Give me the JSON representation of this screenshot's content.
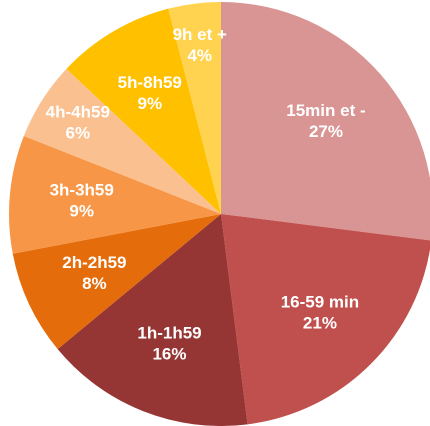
{
  "chart_data": {
    "type": "pie",
    "categories": [
      "15min et -",
      "16-59 min",
      "1h-1h59",
      "2h-2h59",
      "3h-3h59",
      "4h-4h59",
      "5h-8h59",
      "9h et +"
    ],
    "values": [
      27,
      21,
      16,
      8,
      9,
      6,
      9,
      4
    ],
    "value_labels": [
      "27%",
      "21%",
      "16%",
      "8%",
      "9%",
      "6%",
      "9%",
      "4%"
    ],
    "colors": [
      "#d99594",
      "#c0504d",
      "#963634",
      "#e46c0a",
      "#f79646",
      "#fac090",
      "#ffc000",
      "#ffd34f"
    ]
  }
}
